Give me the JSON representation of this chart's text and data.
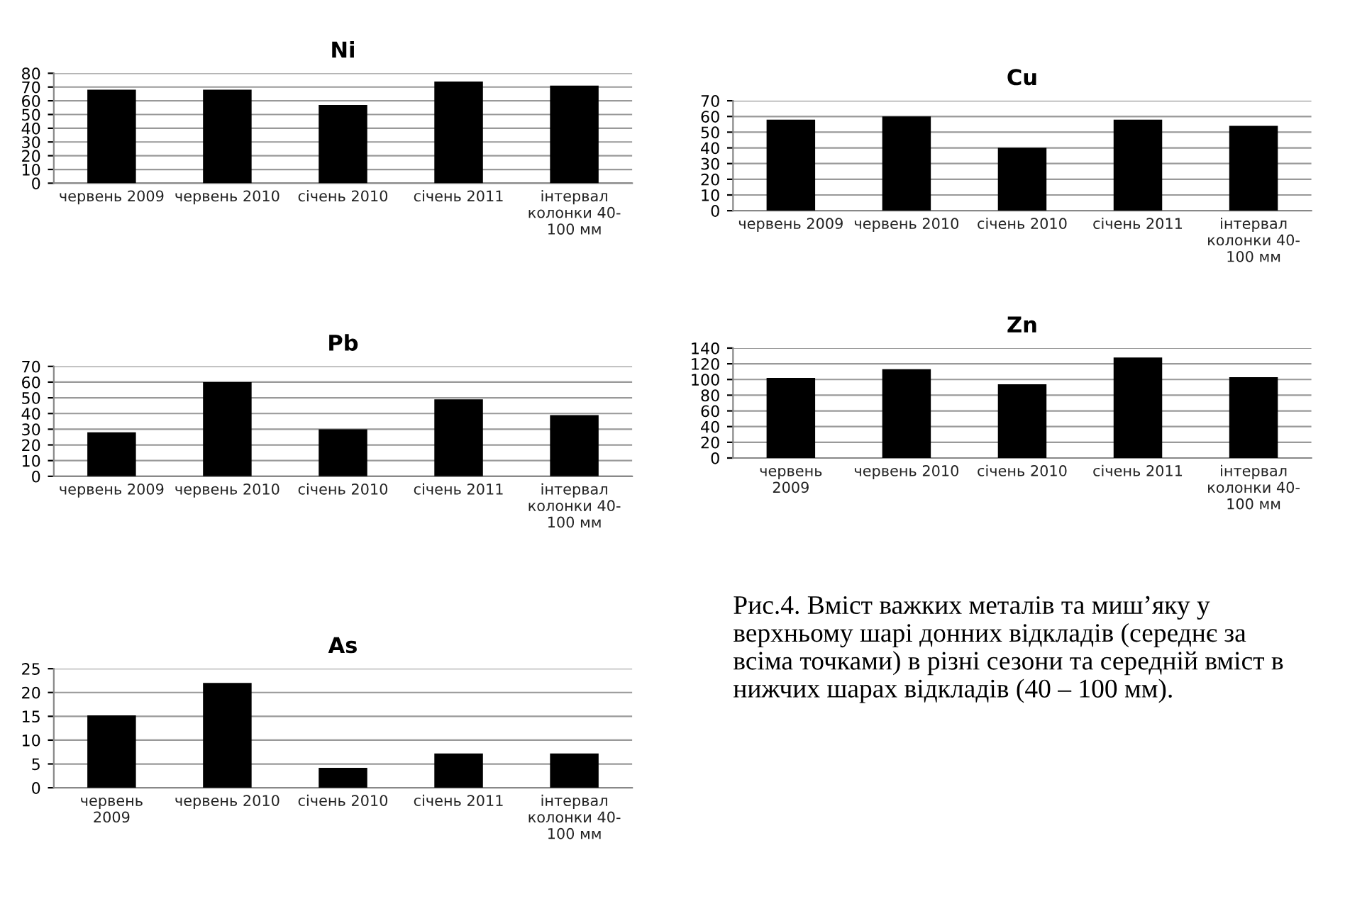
{
  "chart_data": [
    {
      "type": "bar",
      "title": "Ni",
      "categories": [
        "червень 2009",
        "червень 2010",
        "січень 2010",
        "січень 2011",
        "інтервал колонки 40-100 мм"
      ],
      "values": [
        68,
        68,
        57,
        74,
        71
      ],
      "color": "#000000",
      "ylim": [
        0,
        80
      ],
      "yticks": [
        0,
        10,
        20,
        30,
        40,
        50,
        60,
        70,
        80
      ],
      "grid": "y"
    },
    {
      "type": "bar",
      "title": "Cu",
      "categories": [
        "червень 2009",
        "червень 2010",
        "січень 2010",
        "січень 2011",
        "інтервал колонки 40-100 мм"
      ],
      "values": [
        58,
        60,
        40,
        58,
        54
      ],
      "color": "#000000",
      "ylim": [
        0,
        70
      ],
      "yticks": [
        0,
        10,
        20,
        30,
        40,
        50,
        60,
        70
      ],
      "grid": "y"
    },
    {
      "type": "bar",
      "title": "Pb",
      "categories": [
        "червень 2009",
        "червень 2010",
        "січень 2010",
        "січень 2011",
        "інтервал колонки 40-100 мм"
      ],
      "values": [
        28,
        60,
        30,
        49,
        39
      ],
      "color": "#000000",
      "ylim": [
        0,
        70
      ],
      "yticks": [
        0,
        10,
        20,
        30,
        40,
        50,
        60,
        70
      ],
      "grid": "y"
    },
    {
      "type": "bar",
      "title": "Zn",
      "categories": [
        "червень  2009",
        "червень 2010",
        "січень 2010",
        "січень 2011",
        "інтервал колонки 40-100 мм"
      ],
      "values": [
        102,
        113,
        94,
        128,
        103
      ],
      "color": "#000000",
      "ylim": [
        0,
        140
      ],
      "yticks": [
        0,
        20,
        40,
        60,
        80,
        100,
        120,
        140
      ],
      "grid": "y"
    },
    {
      "type": "bar",
      "title": "As",
      "categories": [
        "червень  2009",
        "червень 2010",
        "січень 2010",
        "січень 2011",
        "інтервал колонки 40-100 мм"
      ],
      "values": [
        15.2,
        22,
        4.2,
        7.2,
        7.2
      ],
      "color": "#000000",
      "ylim": [
        0,
        25
      ],
      "yticks": [
        0,
        5,
        10,
        15,
        20,
        25
      ],
      "grid": "y"
    },
    {
      "type": "other",
      "annotations": [
        "Рис.4. Вміст важких металів та миш’яку у верхньому шарі донних відкладів (середнє за всіма точками) в різні сезони та середній вміст в нижчих шарах відкладів (40 – 100 мм)."
      ]
    }
  ]
}
